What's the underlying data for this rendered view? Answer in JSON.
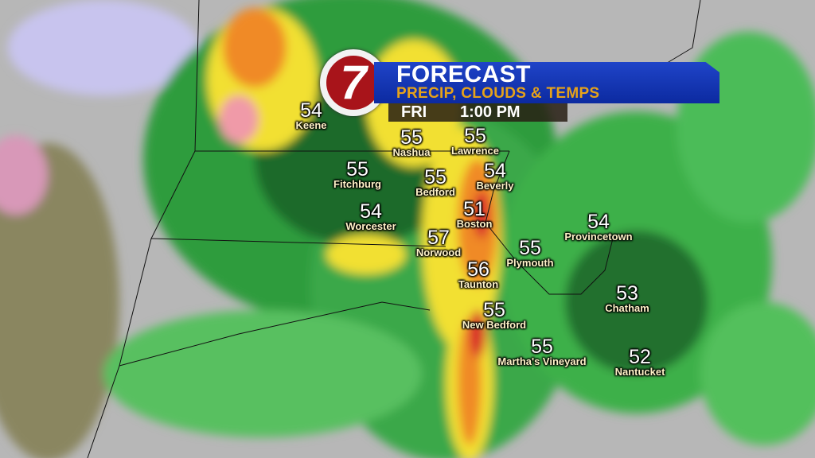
{
  "header": {
    "logo_text": "7",
    "title": "FORECAST",
    "subtitle": "PRECIP, CLOUDS & TEMPS",
    "day": "FRI",
    "time": "1:00 PM"
  },
  "colors": {
    "banner": "#1a3cc0",
    "subtitle": "#e6a21a",
    "logo": "#a8141a",
    "rain_light": "#3cb04a",
    "rain_heavy": "#1e6a2a",
    "moderate": "#f2e030",
    "heavy": "#f08a28",
    "intense": "#d8282a",
    "snow": "#b0a8f0"
  },
  "cities": [
    {
      "name": "Keene",
      "temp": "54"
    },
    {
      "name": "Nashua",
      "temp": "55"
    },
    {
      "name": "Lawrence",
      "temp": "55"
    },
    {
      "name": "Fitchburg",
      "temp": "55"
    },
    {
      "name": "Bedford",
      "temp": "55"
    },
    {
      "name": "Beverly",
      "temp": "54"
    },
    {
      "name": "Worcester",
      "temp": "54"
    },
    {
      "name": "Boston",
      "temp": "51"
    },
    {
      "name": "Provincetown",
      "temp": "54"
    },
    {
      "name": "Norwood",
      "temp": "57"
    },
    {
      "name": "Plymouth",
      "temp": "55"
    },
    {
      "name": "Taunton",
      "temp": "56"
    },
    {
      "name": "Chatham",
      "temp": "53"
    },
    {
      "name": "New Bedford",
      "temp": "55"
    },
    {
      "name": "Martha's Vineyard",
      "temp": "55"
    },
    {
      "name": "Nantucket",
      "temp": "52"
    }
  ]
}
